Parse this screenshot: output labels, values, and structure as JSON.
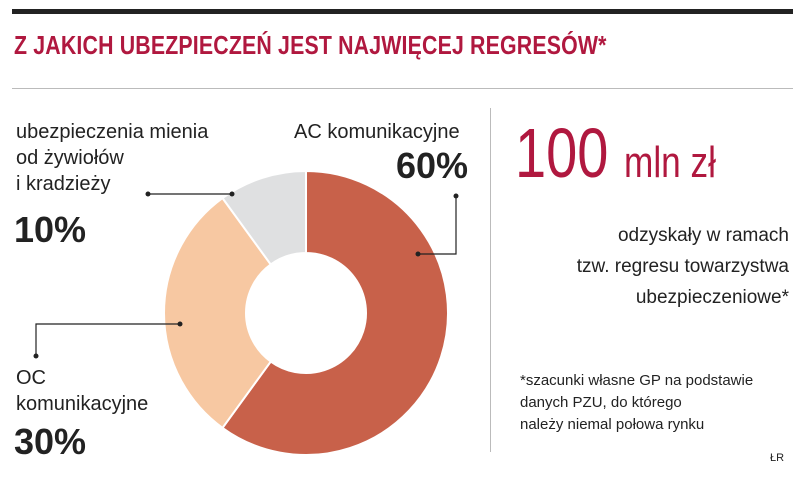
{
  "title": "Z JAKICH UBEZPIECZEŃ JEST NAJWIĘCEJ REGRESÓW*",
  "chart_data": {
    "type": "pie",
    "donut": true,
    "slices": [
      {
        "label": "AC komunikacyjne",
        "value": 60,
        "value_text": "60%",
        "color": "#c8614a"
      },
      {
        "label": "OC komunikacyjne",
        "value": 30,
        "value_text": "30%",
        "color": "#f7c8a2"
      },
      {
        "label": "ubezpieczenia mienia od żywiołów i kradzieży",
        "value": 10,
        "value_text": "10%",
        "color": "#dfe0e1"
      }
    ]
  },
  "labels": {
    "ac": {
      "name": "AC komunikacyjne",
      "pct": "60%"
    },
    "oc": {
      "line1": "OC",
      "line2": "komunikacyjne",
      "pct": "30%"
    },
    "mienie": {
      "line1": "ubezpieczenia mienia",
      "line2": "od żywiołów",
      "line3": "i kradzieży",
      "pct": "10%"
    }
  },
  "stat": {
    "number": "100",
    "unit": "mln zł",
    "desc_line1": "odzyskały w ramach",
    "desc_line2": "tzw. regresu towarzystwa",
    "desc_line3": "ubezpieczeniowe*"
  },
  "footnote": {
    "line1": "*szacunki własne GP na podstawie",
    "line2": "danych PZU, do którego",
    "line3": "należy niemal połowa rynku"
  },
  "credit": "ŁR",
  "colors": {
    "accent": "#b0183f",
    "ink": "#222222"
  }
}
